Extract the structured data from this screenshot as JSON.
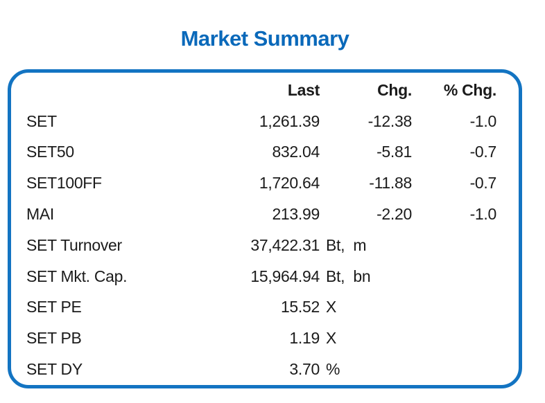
{
  "title": "Market Summary",
  "colors": {
    "title": "#0a69ba",
    "border": "#1374c2",
    "text": "#1b1b1b"
  },
  "table": {
    "headers": {
      "name": "",
      "last": "Last",
      "chg": "Chg.",
      "pct_chg": "% Chg."
    },
    "rows": [
      {
        "label": "SET",
        "last": "1,261.39",
        "unit": "",
        "chg": "-12.38",
        "pct_chg": "-1.0"
      },
      {
        "label": "SET50",
        "last": "832.04",
        "unit": "",
        "chg": "-5.81",
        "pct_chg": "-0.7"
      },
      {
        "label": "SET100FF",
        "last": "1,720.64",
        "unit": "",
        "chg": "-11.88",
        "pct_chg": "-0.7"
      },
      {
        "label": "MAI",
        "last": "213.99",
        "unit": "",
        "chg": "-2.20",
        "pct_chg": "-1.0"
      },
      {
        "label": "SET Turnover",
        "last": "37,422.31",
        "unit": "Bt,  m",
        "chg": "",
        "pct_chg": ""
      },
      {
        "label": "SET Mkt. Cap.",
        "last": "15,964.94",
        "unit": "Bt,  bn",
        "chg": "",
        "pct_chg": ""
      },
      {
        "label": "SET PE",
        "last": "15.52",
        "unit": "X",
        "chg": "",
        "pct_chg": ""
      },
      {
        "label": "SET PB",
        "last": "1.19",
        "unit": "X",
        "chg": "",
        "pct_chg": ""
      },
      {
        "label": "SET DY",
        "last": "3.70",
        "unit": "%",
        "chg": "",
        "pct_chg": ""
      }
    ]
  },
  "chart_data": {
    "type": "table",
    "title": "Market Summary",
    "columns": [
      "",
      "Last",
      "Chg.",
      "% Chg."
    ],
    "rows": [
      [
        "SET",
        "1,261.39",
        "-12.38",
        "-1.0"
      ],
      [
        "SET50",
        "832.04",
        "-5.81",
        "-0.7"
      ],
      [
        "SET100FF",
        "1,720.64",
        "-11.88",
        "-0.7"
      ],
      [
        "MAI",
        "213.99",
        "-2.20",
        "-1.0"
      ],
      [
        "SET Turnover",
        "37,422.31 Bt, m",
        "",
        ""
      ],
      [
        "SET Mkt. Cap.",
        "15,964.94 Bt, bn",
        "",
        ""
      ],
      [
        "SET PE",
        "15.52 X",
        "",
        ""
      ],
      [
        "SET PB",
        "1.19 X",
        "",
        ""
      ],
      [
        "SET DY",
        "3.70 %",
        "",
        ""
      ]
    ],
    "layout": {
      "title_color": "#0a69ba",
      "panel_border_color": "#1374c2",
      "value_alignment": "right",
      "grid": false
    }
  }
}
